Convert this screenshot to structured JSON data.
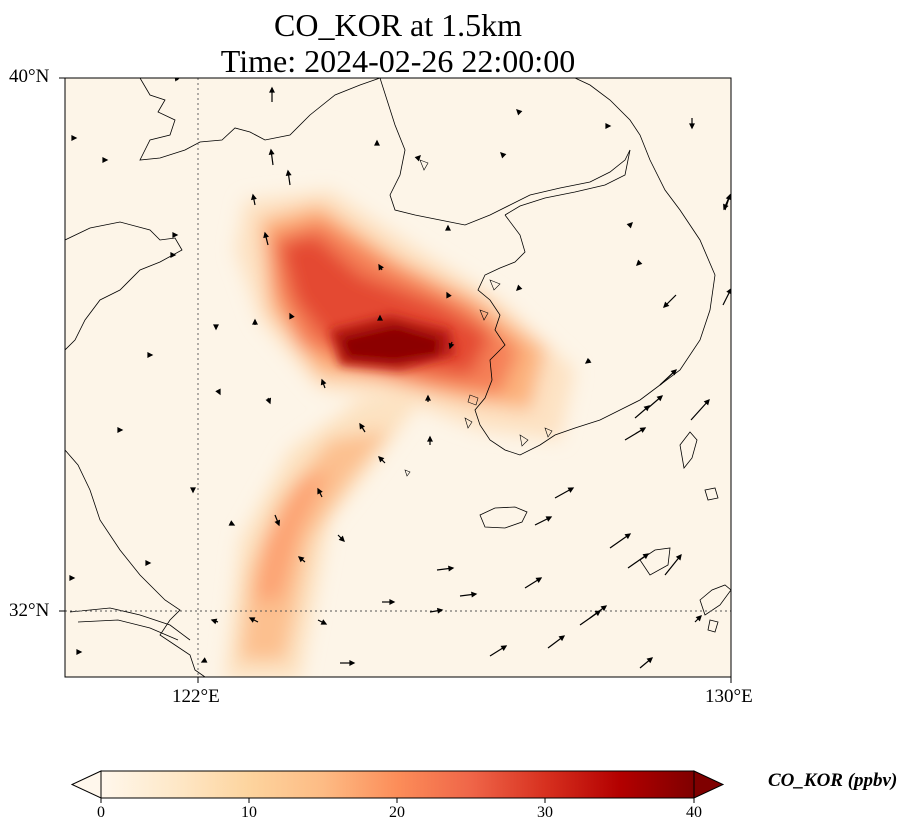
{
  "title": {
    "line1": "CO_KOR at 1.5km",
    "line2": "Time: 2024-02-26 22:00:00"
  },
  "map": {
    "lat_labels": [
      "40°N",
      "32°N"
    ],
    "lon_labels": [
      "122°E",
      "130°E"
    ],
    "lat_range": [
      31,
      40
    ],
    "lon_range": [
      120,
      130
    ],
    "gridlines": "dotted",
    "colors": {
      "background": "#fdf5e8",
      "coastline": "#000000",
      "vectors": "#000000"
    },
    "plume_core": {
      "lat": 36.4,
      "lon": 124.8,
      "max_ppbv": 40
    }
  },
  "colorbar": {
    "label": "CO_KOR (ppbv)",
    "ticks": [
      "0",
      "10",
      "20",
      "30",
      "40"
    ],
    "range": [
      0,
      40
    ],
    "colormap": "OrRd",
    "extend": "both"
  }
}
